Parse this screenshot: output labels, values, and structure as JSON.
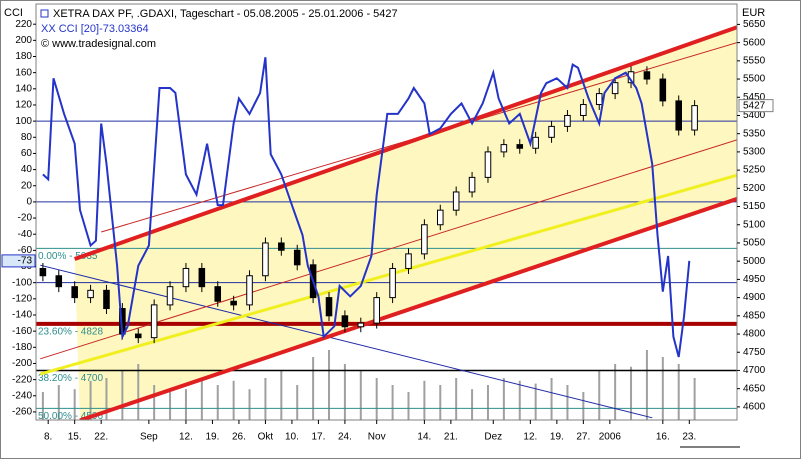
{
  "chart_data": {
    "type": "candlestick",
    "title": "XETRA DAX PF, .GDAXI, Tageschart - 05.08.2005 - 25.01.2006 - 5427",
    "subtitle": "XX CCI [20]-73.03364",
    "source": "© www.tradesignal.com",
    "y_label": "CCI",
    "y2_label": "EUR",
    "xlim": [
      -1.3,
      131
    ],
    "xticks": [
      {
        "value": 1,
        "label": "8."
      },
      {
        "value": 6,
        "label": "15."
      },
      {
        "value": 11,
        "label": "22."
      },
      {
        "value": 20,
        "label": "Sep"
      },
      {
        "value": 27,
        "label": "12."
      },
      {
        "value": 32,
        "label": "19."
      },
      {
        "value": 37,
        "label": "26."
      },
      {
        "value": 42,
        "label": "Okt"
      },
      {
        "value": 47,
        "label": "10."
      },
      {
        "value": 52,
        "label": "17."
      },
      {
        "value": 57,
        "label": "24."
      },
      {
        "value": 63,
        "label": "Nov"
      },
      {
        "value": 72,
        "label": "14."
      },
      {
        "value": 77,
        "label": "21."
      },
      {
        "value": 85,
        "label": "Dez"
      },
      {
        "value": 92,
        "label": "12."
      },
      {
        "value": 97,
        "label": "19."
      },
      {
        "value": 102,
        "label": "27."
      },
      {
        "value": 107,
        "label": "2006"
      },
      {
        "value": 117,
        "label": "16."
      },
      {
        "value": 122,
        "label": "23."
      }
    ],
    "ylim": [
      -270,
      245
    ],
    "yticks": [
      220,
      200,
      180,
      160,
      140,
      120,
      100,
      80,
      60,
      40,
      20,
      0,
      -20,
      -40,
      -60,
      -80,
      -100,
      -120,
      -140,
      -160,
      -180,
      -200,
      -220,
      -240,
      -260
    ],
    "y2lim": [
      4564,
      5706
    ],
    "y2ticks": [
      5650,
      5600,
      5550,
      5500,
      5450,
      5400,
      5350,
      5300,
      5250,
      5200,
      5150,
      5100,
      5050,
      5000,
      4950,
      4900,
      4850,
      4800,
      4750,
      4700,
      4650,
      4600
    ],
    "price": {
      "axis": "y2",
      "x": [
        0,
        3,
        6,
        9,
        12,
        15,
        18,
        21,
        24,
        27,
        30,
        33,
        36,
        39,
        42,
        45,
        48,
        51,
        54,
        57,
        60,
        63,
        66,
        69,
        72,
        75,
        78,
        81,
        84,
        87,
        90,
        93,
        96,
        99,
        102,
        105,
        108,
        111,
        114,
        117,
        120,
        123
      ],
      "open": [
        4980,
        4960,
        4930,
        4900,
        4920,
        4870,
        4800,
        4790,
        4880,
        4930,
        4980,
        4930,
        4890,
        4880,
        4960,
        5050,
        5030,
        4990,
        4900,
        4850,
        4820,
        4830,
        4900,
        4980,
        5020,
        5100,
        5140,
        5190,
        5230,
        5300,
        5320,
        5310,
        5340,
        5370,
        5400,
        5430,
        5460,
        5490,
        5520,
        5500,
        5440,
        5360
      ],
      "high": [
        4995,
        4975,
        4945,
        4935,
        4935,
        4885,
        4815,
        4895,
        4945,
        4995,
        4995,
        4945,
        4905,
        4975,
        5065,
        5065,
        5045,
        5005,
        4915,
        4865,
        4845,
        4915,
        4995,
        5035,
        5115,
        5155,
        5205,
        5245,
        5315,
        5335,
        5335,
        5355,
        5385,
        5415,
        5445,
        5475,
        5505,
        5535,
        5535,
        5515,
        5455,
        5442
      ],
      "low": [
        4945,
        4915,
        4885,
        4885,
        4855,
        4785,
        4775,
        4775,
        4865,
        4915,
        4915,
        4875,
        4865,
        4865,
        4945,
        5015,
        4975,
        4885,
        4835,
        4805,
        4805,
        4815,
        4885,
        4965,
        5005,
        5085,
        5125,
        5175,
        5215,
        5285,
        5295,
        5295,
        5325,
        5355,
        5385,
        5415,
        5445,
        5475,
        5485,
        5425,
        5345,
        5345
      ],
      "close": [
        4960,
        4930,
        4900,
        4920,
        4870,
        4800,
        4790,
        4880,
        4930,
        4980,
        4930,
        4890,
        4880,
        4960,
        5050,
        5030,
        4990,
        4900,
        4850,
        4820,
        4830,
        4900,
        4980,
        5020,
        5100,
        5140,
        5190,
        5230,
        5300,
        5320,
        5310,
        5340,
        5370,
        5400,
        5430,
        5460,
        5490,
        5520,
        5500,
        5440,
        5360,
        5427
      ],
      "volume": [
        20,
        25,
        22,
        28,
        30,
        35,
        40,
        25,
        20,
        22,
        30,
        25,
        28,
        22,
        30,
        35,
        25,
        45,
        50,
        40,
        35,
        30,
        25,
        20,
        28,
        25,
        30,
        22,
        25,
        30,
        28,
        26,
        30,
        25,
        20,
        35,
        40,
        38,
        50,
        45,
        40,
        30
      ],
      "color": "#000000",
      "volume_color": "#a0a0a0"
    },
    "series": [
      {
        "name": "CCI",
        "color": "#2434c8",
        "x": [
          0,
          1,
          2,
          4,
          6,
          7,
          9,
          10,
          11,
          12,
          14,
          15,
          16,
          18,
          20,
          22,
          24,
          25,
          27,
          29,
          31,
          33,
          34,
          36,
          37,
          39,
          41,
          42,
          43,
          45,
          47,
          49,
          50,
          52,
          53,
          55,
          56,
          58,
          60,
          62,
          63,
          65,
          67,
          69,
          70,
          72,
          73,
          75,
          77,
          79,
          81,
          83,
          85,
          86,
          88,
          90,
          92,
          94,
          95,
          97,
          99,
          100,
          101,
          103,
          105,
          106,
          108,
          110,
          112,
          113,
          115,
          116,
          117,
          118,
          119,
          120,
          121,
          122
        ],
        "values": [
          34,
          28,
          153,
          109,
          72,
          -10,
          -54,
          -48,
          97,
          47,
          -79,
          -167,
          -154,
          -79,
          -54,
          141,
          141,
          135,
          34,
          9,
          72,
          -4,
          -4,
          97,
          128,
          109,
          135,
          179,
          59,
          34,
          -4,
          -41,
          -79,
          -117,
          -167,
          -154,
          -104,
          -117,
          -104,
          -67,
          9,
          109,
          109,
          128,
          141,
          122,
          84,
          91,
          109,
          122,
          97,
          122,
          160,
          128,
          97,
          109,
          72,
          135,
          147,
          153,
          141,
          170,
          166,
          128,
          97,
          135,
          153,
          160,
          141,
          122,
          47,
          -41,
          -111,
          -67,
          -167,
          -192,
          -142,
          -73.03364
        ]
      }
    ],
    "cci_marker": {
      "value": -73.03364,
      "label": "-73"
    },
    "last_price": 5427,
    "cci_levels": [
      100,
      0,
      -100
    ],
    "cci_level_color": "#2030a0",
    "channel_fill": "#fff7c0",
    "overlays": [
      {
        "color": "#1c2aa8",
        "width": 1,
        "x": [
          -0.5,
          115
        ],
        "y": [
          4989,
          4570
        ]
      },
      {
        "color": "#c82828",
        "width": 1,
        "x": [
          -0.5,
          131
        ],
        "y": [
          4732,
          5333
        ]
      },
      {
        "color": "#c82828",
        "width": 1,
        "x": [
          11,
          131
        ],
        "y": [
          5080,
          5600
        ]
      },
      {
        "color": "#f0f020",
        "width": 3,
        "x": [
          -0.5,
          131
        ],
        "y": [
          4690,
          5236
        ]
      },
      {
        "color": "#e02020",
        "width": 4,
        "x": [
          6,
          131
        ],
        "y": [
          5006,
          5642
        ]
      },
      {
        "color": "#e02020",
        "width": 4,
        "x": [
          7,
          131
        ],
        "y": [
          4563,
          5171
        ]
      }
    ],
    "levels": [
      {
        "label": "0.00% - 5035",
        "value": 5035,
        "color": "#2f8f8f",
        "width": 1
      },
      {
        "label": "23.60% - 4828",
        "value": 4828,
        "color": "#a80000",
        "width": 4
      },
      {
        "label": "38.20% - 4700",
        "value": 4700,
        "color": "#000000",
        "width": 1.5
      },
      {
        "label": "50.00% - 4596",
        "value": 4596,
        "color": "#2f8f8f",
        "width": 1
      }
    ]
  }
}
